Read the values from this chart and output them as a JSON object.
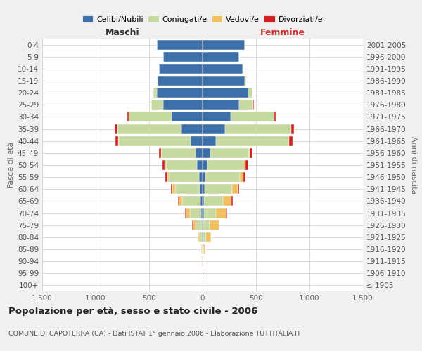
{
  "age_groups": [
    "100+",
    "95-99",
    "90-94",
    "85-89",
    "80-84",
    "75-79",
    "70-74",
    "65-69",
    "60-64",
    "55-59",
    "50-54",
    "45-49",
    "40-44",
    "35-39",
    "30-34",
    "25-29",
    "20-24",
    "15-19",
    "10-14",
    "5-9",
    "0-4"
  ],
  "birth_years": [
    "≤ 1905",
    "1906-1910",
    "1911-1915",
    "1916-1920",
    "1921-1925",
    "1926-1930",
    "1931-1935",
    "1936-1940",
    "1941-1945",
    "1946-1950",
    "1951-1955",
    "1956-1960",
    "1961-1965",
    "1966-1970",
    "1971-1975",
    "1976-1980",
    "1981-1985",
    "1986-1990",
    "1991-1995",
    "1996-2000",
    "2001-2005"
  ],
  "males": {
    "celibe": [
      0,
      0,
      1,
      2,
      4,
      8,
      15,
      22,
      28,
      35,
      55,
      65,
      115,
      195,
      290,
      370,
      430,
      420,
      405,
      370,
      425
    ],
    "coniugato": [
      0,
      0,
      2,
      6,
      20,
      55,
      105,
      170,
      230,
      280,
      290,
      315,
      670,
      600,
      400,
      108,
      28,
      7,
      3,
      1,
      0
    ],
    "vedovo": [
      0,
      0,
      1,
      4,
      18,
      32,
      38,
      32,
      22,
      14,
      9,
      5,
      5,
      3,
      2,
      1,
      0,
      0,
      0,
      0,
      0
    ],
    "divorziato": [
      0,
      0,
      0,
      0,
      0,
      4,
      7,
      9,
      14,
      18,
      22,
      22,
      28,
      22,
      13,
      4,
      2,
      0,
      0,
      0,
      0
    ]
  },
  "females": {
    "nubile": [
      0,
      1,
      2,
      3,
      5,
      8,
      13,
      16,
      20,
      26,
      48,
      72,
      128,
      208,
      262,
      342,
      428,
      398,
      378,
      343,
      398
    ],
    "coniugata": [
      0,
      0,
      2,
      8,
      25,
      60,
      115,
      175,
      255,
      325,
      335,
      360,
      675,
      620,
      410,
      132,
      38,
      9,
      3,
      1,
      0
    ],
    "vedova": [
      0,
      0,
      4,
      14,
      48,
      88,
      98,
      78,
      52,
      28,
      18,
      9,
      7,
      4,
      2,
      1,
      0,
      0,
      0,
      0,
      0
    ],
    "divorziata": [
      0,
      0,
      0,
      0,
      2,
      4,
      7,
      11,
      16,
      22,
      28,
      28,
      32,
      22,
      11,
      4,
      2,
      0,
      0,
      0,
      0
    ]
  },
  "colors": {
    "celibe": "#3d6fa8",
    "coniugato": "#c5d9a0",
    "vedovo": "#f0c060",
    "divorziato": "#cc2222"
  },
  "legend_labels": [
    "Celibi/Nubili",
    "Coniugati/e",
    "Vedovi/e",
    "Divorziati/e"
  ],
  "legend_colors": [
    "#3d6fa8",
    "#c5d9a0",
    "#f0c060",
    "#cc2222"
  ],
  "title": "Popolazione per età, sesso e stato civile - 2006",
  "subtitle": "COMUNE DI CAPOTERRA (CA) - Dati ISTAT 1° gennaio 2006 - Elaborazione TUTTITALIA.IT",
  "ylabel_left": "Fasce di età",
  "ylabel_right": "Anni di nascita",
  "label_maschi": "Maschi",
  "label_femmine": "Femmine",
  "xlim": 1500,
  "xticks": [
    -1500,
    -1000,
    -500,
    0,
    500,
    1000,
    1500
  ],
  "xticklabels": [
    "1.500",
    "1.000",
    "500",
    "0",
    "500",
    "1.000",
    "1.500"
  ],
  "bg_color": "#f0f0f0",
  "plot_bg_color": "#ffffff",
  "grid_color": "#cccccc"
}
